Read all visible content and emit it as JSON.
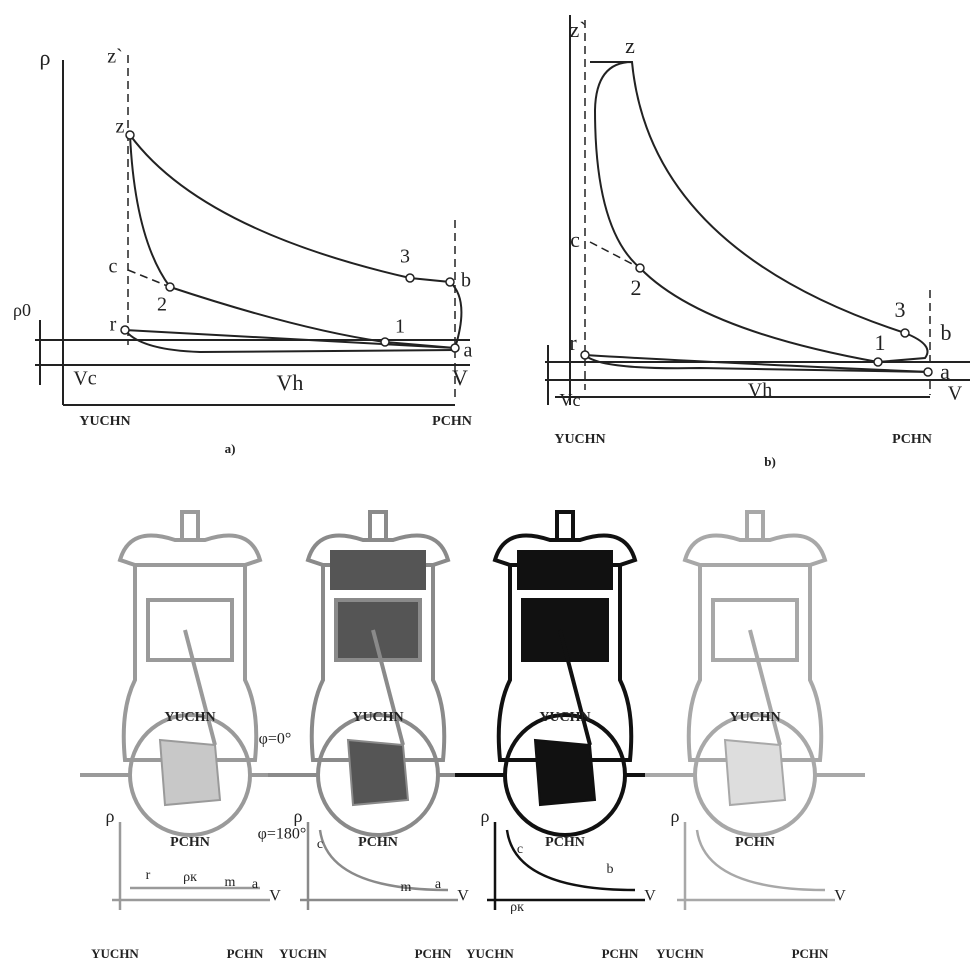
{
  "diagram_a": {
    "caption": "a)",
    "axis_p": "ρ",
    "axis_v": "V",
    "p0": "ρ0",
    "vc": "Vc",
    "vh": "Vh",
    "tdc": "YUCHN",
    "bdc": "PCHN",
    "points": [
      "z`",
      "z",
      "c",
      "2",
      "3",
      "b",
      "1",
      "r",
      "a"
    ]
  },
  "diagram_b": {
    "caption": "b)",
    "axis_v": "V",
    "vc": "Vc",
    "vh": "Vh",
    "tdc": "YUCHN",
    "bdc": "PCHN",
    "points": [
      "z`",
      "z",
      "c",
      "2",
      "3",
      "b",
      "1",
      "r",
      "a"
    ]
  },
  "cycles": [
    {
      "tdc_label": "YUCHN",
      "bdc_label": "PCHN",
      "angle_start": "φ=0°",
      "angle_end": "φ=180°",
      "chart": {
        "axis_p": "ρ",
        "axis_v": "V",
        "points": [
          "r",
          "ρк",
          "m",
          "a"
        ],
        "tdc": "YUCHN",
        "bdc": "PCHN"
      }
    },
    {
      "tdc_label": "YUCHN",
      "bdc_label": "PCHN",
      "chart": {
        "axis_p": "ρ",
        "axis_v": "V",
        "points": [
          "c",
          "m",
          "a"
        ],
        "tdc": "YUCHN",
        "bdc": "PCHN"
      }
    },
    {
      "tdc_label": "YUCHN",
      "bdc_label": "PCHN",
      "chart": {
        "axis_p": "ρ",
        "axis_v": "V",
        "points": [
          "c",
          "ρк",
          "b"
        ],
        "tdc": "YUCHN",
        "bdc": "PCHN"
      }
    },
    {
      "tdc_label": "YUCHN",
      "bdc_label": "PCHN",
      "chart": {
        "axis_p": "ρ",
        "axis_v": "V",
        "points": [],
        "tdc": "YUCHN",
        "bdc": "PCHN"
      }
    }
  ]
}
